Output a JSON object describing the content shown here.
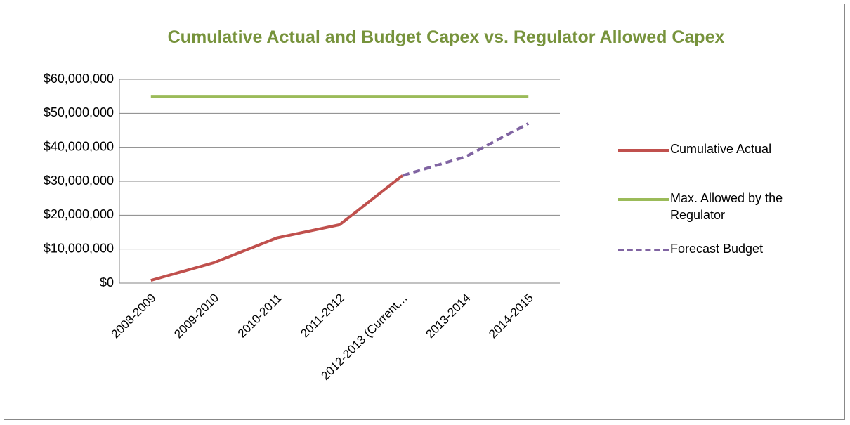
{
  "chart_data": {
    "type": "line",
    "title": "Cumulative Actual and Budget Capex vs. Regulator Allowed Capex",
    "categories": [
      "2008-2009",
      "2009-2010",
      "2010-2011",
      "2011-2012",
      "2012-2013 (Current…",
      "2013-2014",
      "2014-2015"
    ],
    "series": [
      {
        "name": "Cumulative Actual",
        "color": "#c0504d",
        "dashed": false,
        "values": [
          800000,
          6000000,
          13300000,
          17200000,
          31700000,
          null,
          null
        ]
      },
      {
        "name": "Max. Allowed by the Regulator",
        "color": "#9bbb59",
        "dashed": false,
        "values": [
          55000000,
          55000000,
          55000000,
          55000000,
          55000000,
          55000000,
          55000000
        ]
      },
      {
        "name": "Forecast Budget",
        "color": "#8064a2",
        "dashed": true,
        "values": [
          null,
          null,
          null,
          null,
          31700000,
          37200000,
          47000000
        ]
      }
    ],
    "ylim": [
      0,
      60000000
    ],
    "yticks": [
      {
        "value": 0,
        "label": "$0"
      },
      {
        "value": 10000000,
        "label": "$10,000,000"
      },
      {
        "value": 20000000,
        "label": "$20,000,000"
      },
      {
        "value": 30000000,
        "label": "$30,000,000"
      },
      {
        "value": 40000000,
        "label": "$40,000,000"
      },
      {
        "value": 50000000,
        "label": "$50,000,000"
      },
      {
        "value": 60000000,
        "label": "$60,000,000"
      }
    ],
    "grid": true,
    "legend": "right"
  }
}
